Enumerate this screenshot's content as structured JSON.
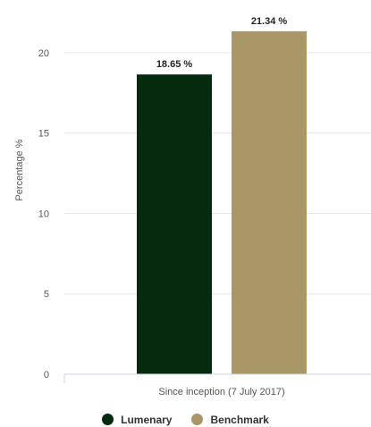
{
  "chart_data": {
    "type": "bar",
    "categories": [
      "Since inception (7 July 2017)"
    ],
    "series": [
      {
        "name": "Lumenary",
        "values": [
          18.65
        ],
        "color": "#052a0d",
        "label": "18.65 %"
      },
      {
        "name": "Benchmark",
        "values": [
          21.34
        ],
        "color": "#a99768",
        "label": "21.34 %"
      }
    ],
    "ylabel": "Percentage %",
    "ylim": [
      0,
      21.5
    ],
    "yticks": [
      0,
      5,
      10,
      15,
      20
    ],
    "grid": true,
    "legend": "bottom-center"
  }
}
